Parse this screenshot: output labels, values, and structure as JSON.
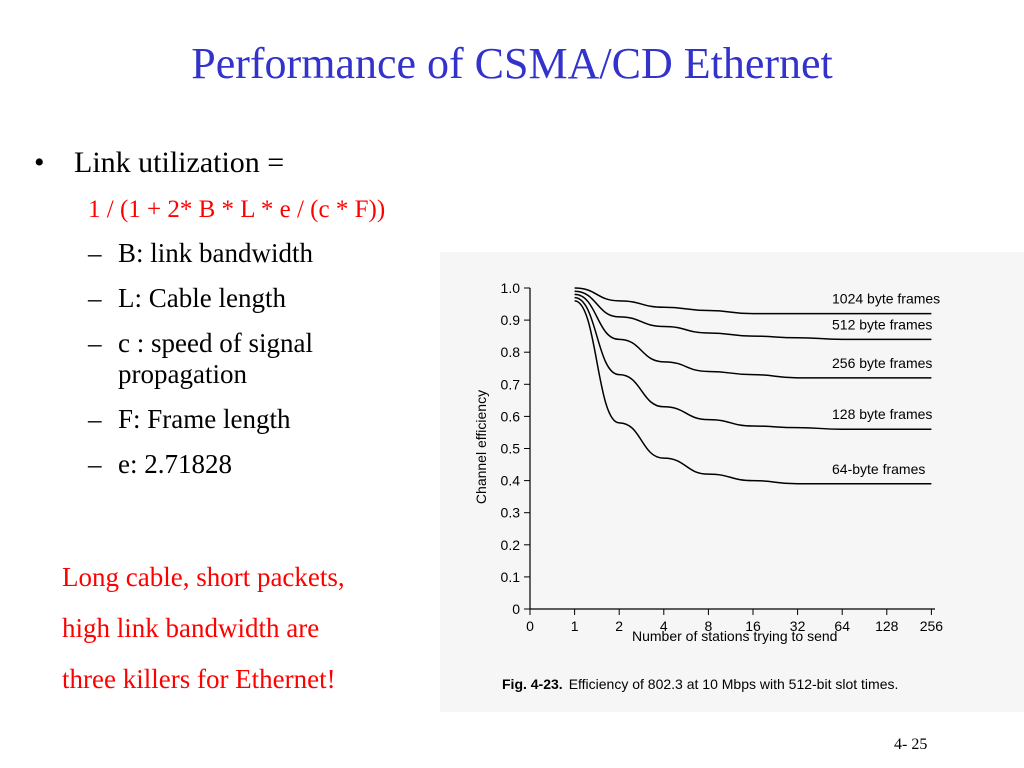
{
  "slide": {
    "title": "Performance of CSMA/CD Ethernet",
    "bullet_marker": "•",
    "bullet": "Link utilization =",
    "formula": "1 / (1 + 2* B * L * e / (c * F))",
    "sub_items": [
      {
        "dash": "–",
        "text": "B: link bandwidth"
      },
      {
        "dash": "–",
        "text": "L: Cable length"
      },
      {
        "dash": "–",
        "text": "c : speed of signal propagation"
      },
      {
        "dash": "–",
        "text": "F: Frame length"
      },
      {
        "dash": "–",
        "text": "e: 2.71828"
      }
    ],
    "killers": [
      "Long cable, short packets,",
      "high link bandwidth are",
      "three killers for Ethernet!"
    ],
    "page_number": "4- 25",
    "colors": {
      "title": "#3333cc",
      "highlight": "#ff0000",
      "text": "#000000"
    }
  },
  "chart_data": {
    "type": "line",
    "xlabel": "Number of stations trying to send",
    "ylabel": "Channel efficiency",
    "caption_label": "Fig. 4-23.",
    "caption_text": "Efficiency of 802.3 at 10 Mbps with 512-bit slot times.",
    "x": [
      1,
      2,
      4,
      8,
      16,
      32,
      64,
      128,
      256
    ],
    "x_ticks": [
      "0",
      "1",
      "2",
      "4",
      "8",
      "16",
      "32",
      "64",
      "128",
      "256"
    ],
    "y_ticks": [
      "0",
      "0.1",
      "0.2",
      "0.3",
      "0.4",
      "0.5",
      "0.6",
      "0.7",
      "0.8",
      "0.9",
      "1.0"
    ],
    "ylim": [
      0,
      1.0
    ],
    "x_scale": "log2",
    "grid": false,
    "series": [
      {
        "name": "1024 byte frames",
        "values": [
          1.0,
          0.96,
          0.94,
          0.93,
          0.92,
          0.92,
          0.92,
          0.92,
          0.92
        ]
      },
      {
        "name": "512 byte frames",
        "values": [
          0.99,
          0.91,
          0.88,
          0.86,
          0.85,
          0.845,
          0.84,
          0.84,
          0.84
        ]
      },
      {
        "name": "256 byte frames",
        "values": [
          0.98,
          0.84,
          0.77,
          0.74,
          0.73,
          0.72,
          0.72,
          0.72,
          0.72
        ]
      },
      {
        "name": "128 byte frames",
        "values": [
          0.97,
          0.73,
          0.63,
          0.59,
          0.57,
          0.565,
          0.56,
          0.56,
          0.56
        ]
      },
      {
        "name": "64-byte frames",
        "values": [
          0.96,
          0.58,
          0.47,
          0.42,
          0.4,
          0.39,
          0.39,
          0.39,
          0.39
        ]
      }
    ]
  }
}
